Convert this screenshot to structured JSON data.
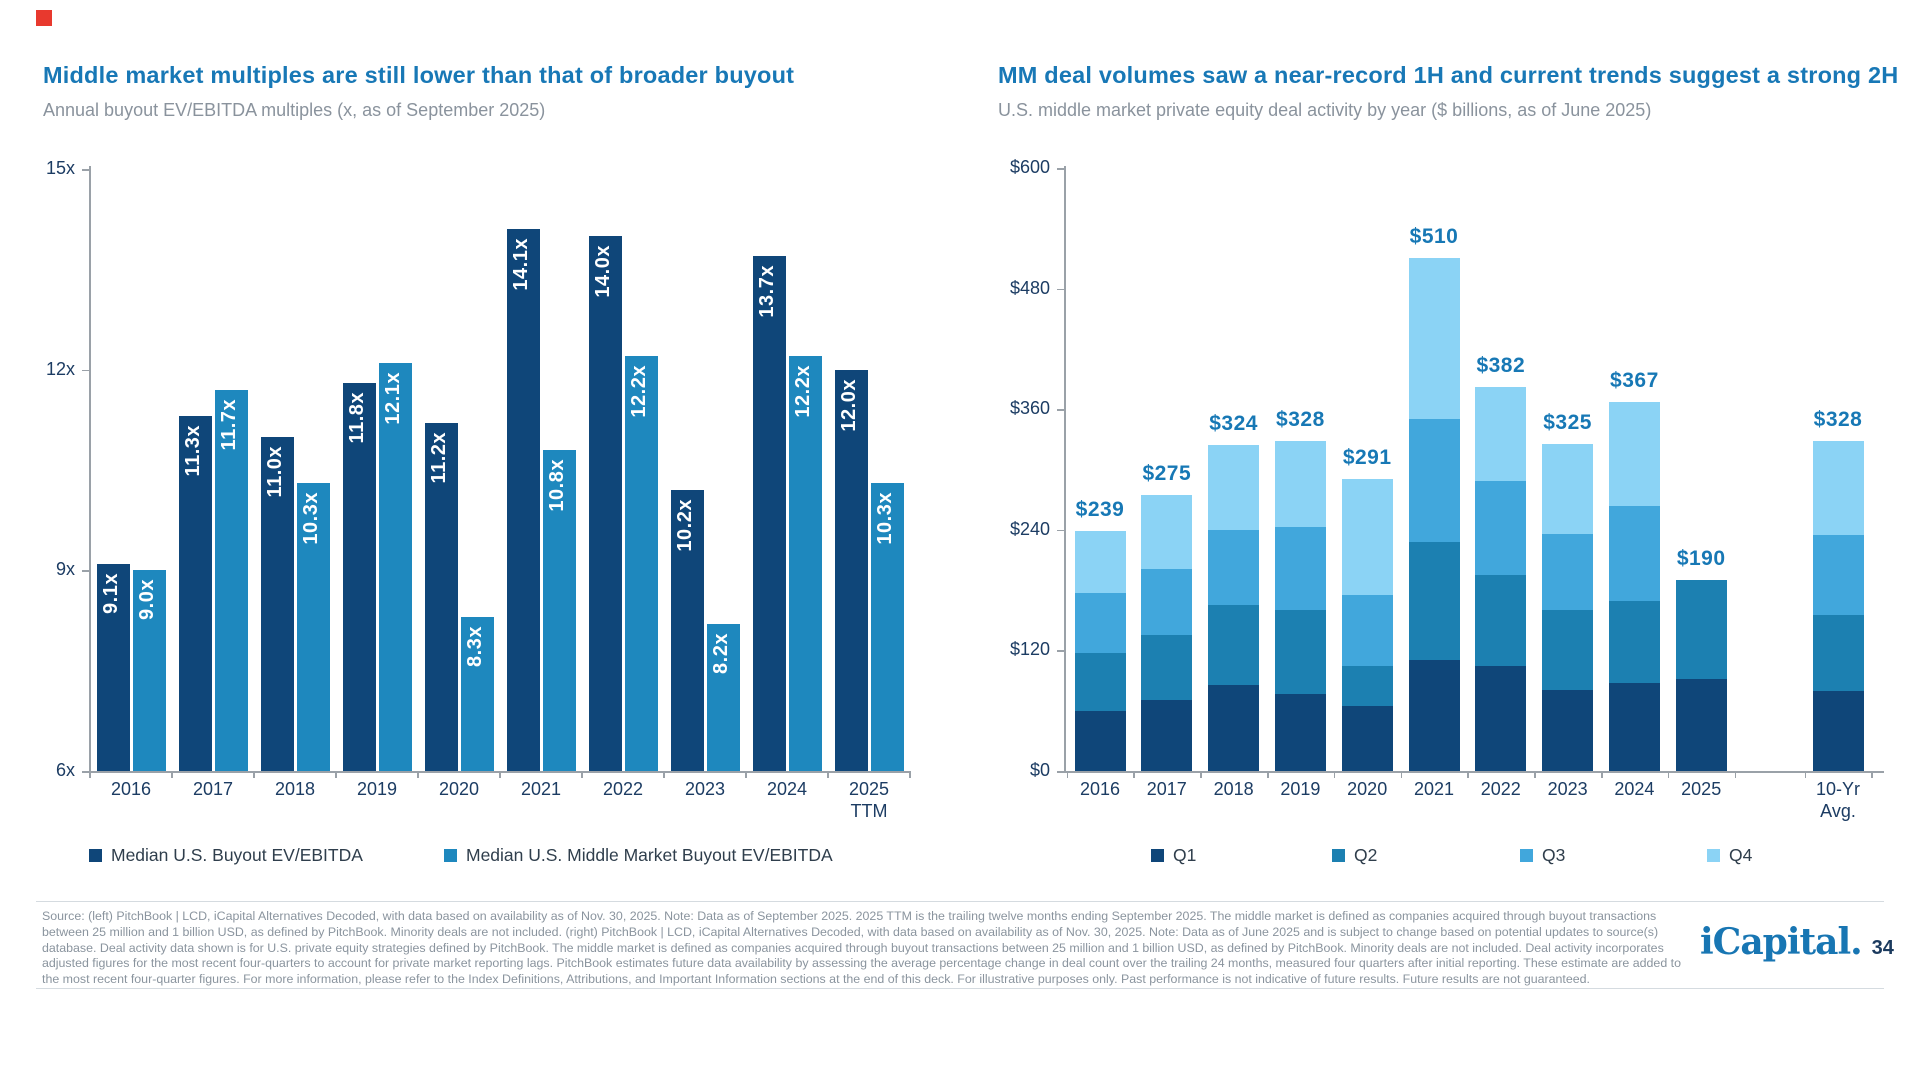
{
  "accent_square_color": "#E8392E",
  "chart_data": [
    {
      "type": "bar",
      "title": "Middle market multiples are still lower than that of broader buyout",
      "subtitle": "Annual buyout EV/EBITDA multiples (x, as of September 2025)",
      "categories": [
        "2016",
        "2017",
        "2018",
        "2019",
        "2020",
        "2021",
        "2022",
        "2023",
        "2024",
        "2025\nTTM"
      ],
      "series": [
        {
          "name": "Median U.S. Buyout EV/EBITDA",
          "color": "#0F4679",
          "values": [
            9.1,
            11.3,
            11.0,
            11.8,
            11.2,
            14.1,
            14.0,
            10.2,
            13.7,
            12.0
          ]
        },
        {
          "name": "Median U.S. Middle Market Buyout EV/EBITDA",
          "color": "#1E88BE",
          "values": [
            9.0,
            11.7,
            10.3,
            12.1,
            8.3,
            10.8,
            12.2,
            8.2,
            12.2,
            10.3
          ]
        }
      ],
      "value_label_suffix": "x",
      "ylim": [
        6,
        15
      ],
      "y_tick_values": [
        6,
        9,
        12,
        15
      ],
      "y_tick_labels": [
        "6x",
        "9x",
        "12x",
        "15x"
      ],
      "grid": false,
      "legend_position": "bottom"
    },
    {
      "type": "stacked-bar",
      "title": "MM deal volumes saw a near-record 1H and current trends suggest a strong 2H",
      "subtitle": "U.S. middle market private equity deal activity by year ($ billions, as of June 2025)",
      "categories": [
        "2016",
        "2017",
        "2018",
        "2019",
        "2020",
        "2021",
        "2022",
        "2023",
        "2024",
        "2025",
        "10-Yr\nAvg."
      ],
      "series": [
        {
          "name": "Q1",
          "color": "#0F4679",
          "values": [
            60,
            71,
            86,
            77,
            65,
            110,
            104,
            81,
            88,
            92,
            80
          ]
        },
        {
          "name": "Q2",
          "color": "#1C80B1",
          "values": [
            57,
            64,
            79,
            83,
            39,
            118,
            91,
            79,
            81,
            98,
            75
          ]
        },
        {
          "name": "Q3",
          "color": "#41A7DC",
          "values": [
            60,
            66,
            75,
            83,
            71,
            122,
            94,
            76,
            95,
            0,
            80
          ]
        },
        {
          "name": "Q4",
          "color": "#8BD3F5",
          "values": [
            62,
            74,
            84,
            85,
            116,
            160,
            93,
            89,
            103,
            0,
            93
          ]
        }
      ],
      "totals": [
        239,
        275,
        324,
        328,
        291,
        510,
        382,
        325,
        367,
        190,
        328
      ],
      "total_labels": [
        "$239",
        "$275",
        "$324",
        "$328",
        "$291",
        "$510",
        "$382",
        "$325",
        "$367",
        "$190",
        "$328"
      ],
      "pattern_category_index": 10,
      "ylim": [
        0,
        600
      ],
      "y_tick_values": [
        0,
        120,
        240,
        360,
        480,
        600
      ],
      "y_tick_labels": [
        "$0",
        "$120",
        "$240",
        "$360",
        "$480",
        "$600"
      ],
      "grid": false,
      "legend_position": "bottom",
      "legend": [
        "Q1",
        "Q2",
        "Q3",
        "Q4"
      ]
    }
  ],
  "footer": {
    "lines": [
      "Source: (left) PitchBook | LCD, iCapital Alternatives Decoded, with data based on availability as of Nov. 30, 2025. Note: Data as of September 2025. 2025 TTM is the trailing twelve months ending September 2025. The middle market is defined as companies acquired through buyout transactions",
      "between 25 million and 1 billion USD, as defined by PitchBook. Minority deals are not included. (right) PitchBook | LCD, iCapital Alternatives Decoded, with data based on availability as of Nov. 30, 2025. Note: Data as of June 2025 and is subject to change based on potential updates to source(s)",
      "database. Deal activity data shown is for U.S. private equity strategies defined by PitchBook. The middle market is defined as companies acquired through buyout transactions between 25 million and 1 billion USD, as defined by PitchBook. Minority deals are not included. Deal activity incorporates",
      "adjusted figures for the most recent four-quarters to account for private market reporting lags. PitchBook estimates future data availability by assessing the average percentage change in deal count over the trailing 24 months, measured four quarters after initial reporting. These estimate are added to",
      "the most recent four-quarter figures. For more information, please refer to the Index Definitions, Attributions, and Important Information sections at the end of this deck. For illustrative purposes only. Past performance is not indicative of future results. Future results are not guaranteed."
    ]
  },
  "logo": {
    "wordmark": "iCapital.",
    "page_number": "34"
  }
}
